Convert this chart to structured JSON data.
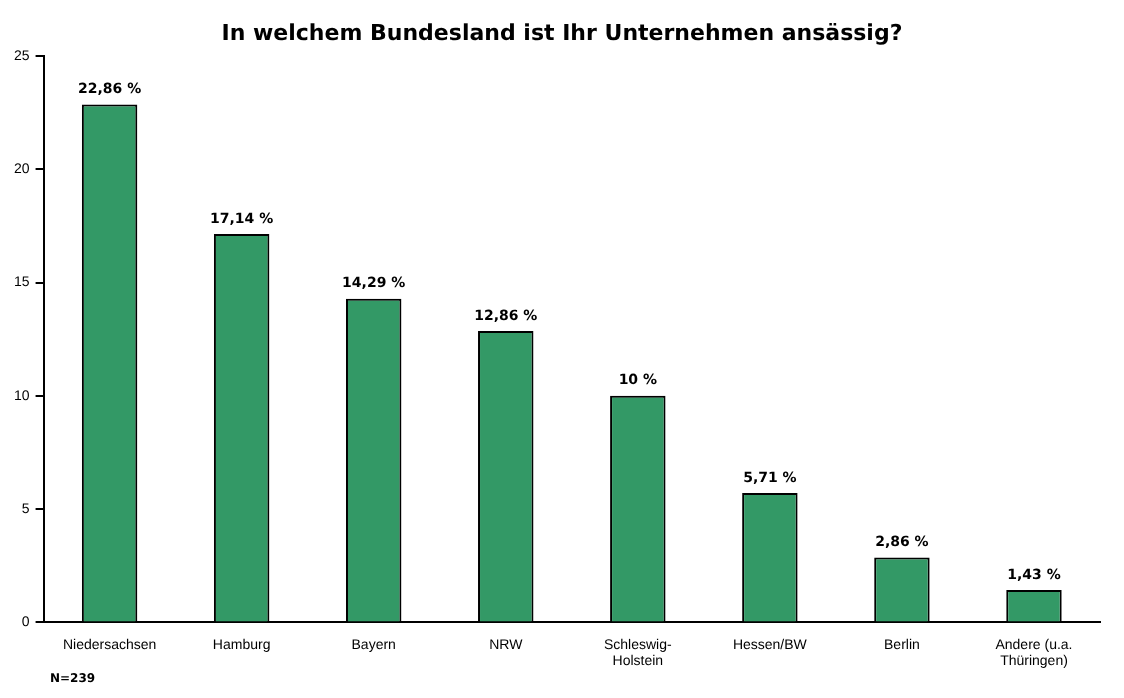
{
  "chart_data": {
    "type": "bar",
    "title": "In welchem Bundesland ist Ihr Unternehmen ansässig?",
    "categories": [
      "Niedersachsen",
      "Hamburg",
      "Bayern",
      "NRW",
      "Schleswig-Holstein",
      "Hessen/BW",
      "Berlin",
      "Andere (u.a. Thüringen)"
    ],
    "values": [
      22.86,
      17.14,
      14.29,
      12.86,
      10,
      5.71,
      2.86,
      1.43
    ],
    "value_labels": [
      "22,86 %",
      "17,14 %",
      "14,29 %",
      "12,86 %",
      "10 %",
      "5,71 %",
      "2,86 %",
      "1,43 %"
    ],
    "color": "#339966",
    "ylim": [
      0,
      25
    ],
    "yticks": [
      0,
      5,
      10,
      15,
      20,
      25
    ],
    "grid": false,
    "legend": false,
    "annotations": [
      "N=239"
    ]
  }
}
